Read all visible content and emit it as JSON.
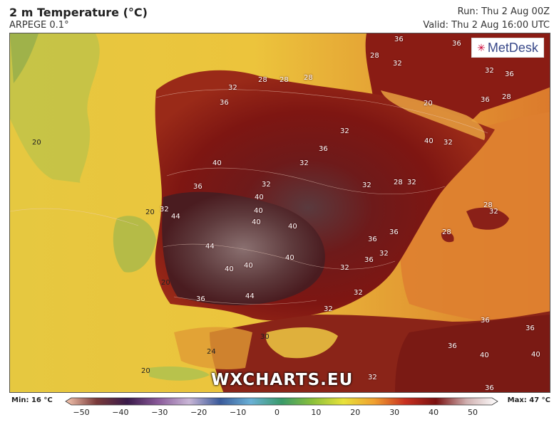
{
  "header": {
    "title": "2 m Temperature (°C)",
    "model": "ARPEGE 0.1°",
    "run": "Run: Thu 2 Aug 00Z",
    "valid": "Valid: Thu 2 Aug 16:00 UTC"
  },
  "logo": {
    "text": "MetDesk"
  },
  "watermark": "WXCHARTS.EU",
  "legend": {
    "min_label": "Min: 16 °C",
    "max_label": "Max: 47 °C",
    "ticks": [
      "−50",
      "−40",
      "−30",
      "−20",
      "−10",
      "0",
      "10",
      "20",
      "30",
      "40",
      "50"
    ],
    "colors": [
      "#f6c7b0",
      "#7a3a3a",
      "#3a1a4a",
      "#8a5a9a",
      "#c9b6d6",
      "#3a5a9a",
      "#6ab0d6",
      "#3a9a6a",
      "#8ac03a",
      "#e8e23a",
      "#f0a030",
      "#c83020",
      "#7a1010",
      "#d0b0b0",
      "#ffffff"
    ]
  },
  "map_labels": [
    {
      "t": "36"
    },
    {
      "t": "28"
    },
    {
      "t": "32"
    },
    {
      "t": "36"
    },
    {
      "t": "28"
    },
    {
      "t": "28"
    },
    {
      "t": "28"
    },
    {
      "t": "36"
    },
    {
      "t": "32"
    },
    {
      "t": "28"
    },
    {
      "t": "32"
    },
    {
      "t": "40"
    },
    {
      "t": "32"
    },
    {
      "t": "36"
    },
    {
      "t": "36"
    },
    {
      "t": "20"
    },
    {
      "t": "40"
    },
    {
      "t": "36"
    },
    {
      "t": "32"
    },
    {
      "t": "32"
    },
    {
      "t": "40"
    },
    {
      "t": "36"
    },
    {
      "t": "32"
    },
    {
      "t": "28"
    },
    {
      "t": "32"
    },
    {
      "t": "32"
    },
    {
      "t": "40"
    },
    {
      "t": "20"
    },
    {
      "t": "32"
    },
    {
      "t": "44"
    },
    {
      "t": "40"
    },
    {
      "t": "40"
    },
    {
      "t": "28"
    },
    {
      "t": "32"
    },
    {
      "t": "36"
    },
    {
      "t": "28"
    },
    {
      "t": "44"
    },
    {
      "t": "36"
    },
    {
      "t": "32"
    },
    {
      "t": "40"
    },
    {
      "t": "40"
    },
    {
      "t": "40"
    },
    {
      "t": "36"
    },
    {
      "t": "32"
    },
    {
      "t": "20"
    },
    {
      "t": "36"
    },
    {
      "t": "44"
    },
    {
      "t": "32"
    },
    {
      "t": "32"
    },
    {
      "t": "30"
    },
    {
      "t": "24"
    },
    {
      "t": "36"
    },
    {
      "t": "36"
    },
    {
      "t": "36"
    },
    {
      "t": "40"
    },
    {
      "t": "40"
    },
    {
      "t": "20"
    },
    {
      "t": "32"
    },
    {
      "t": "36"
    },
    {
      "t": "20"
    }
  ]
}
